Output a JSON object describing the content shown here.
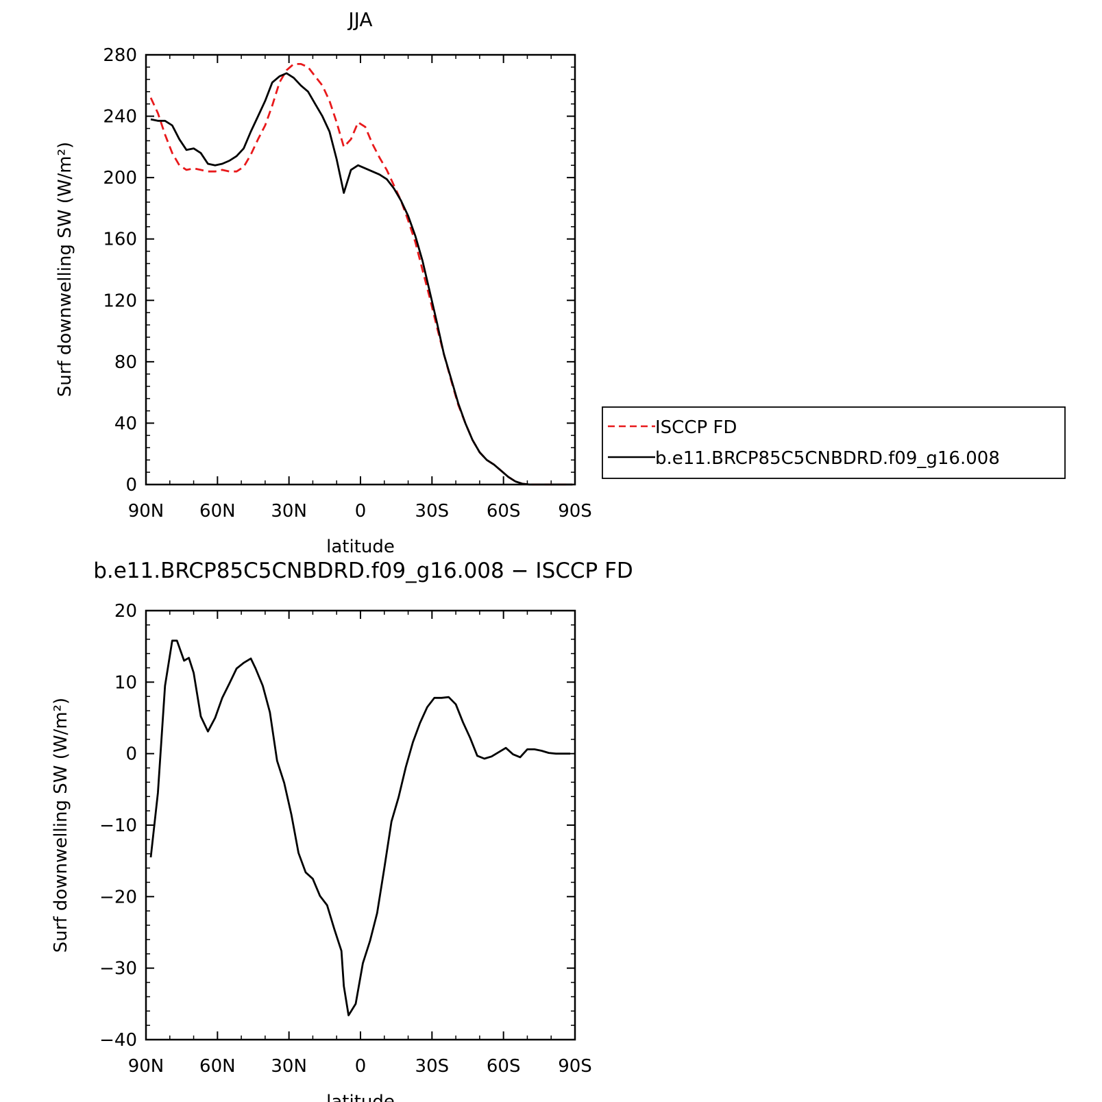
{
  "chart_data": [
    {
      "type": "line",
      "title": "JJA",
      "xlabel": "latitude",
      "ylabel": "Surf downwelling SW (W/m²)",
      "xlim": [
        90,
        -90
      ],
      "ylim": [
        0,
        280
      ],
      "x_ticks": [
        {
          "value": 90,
          "label": "90N"
        },
        {
          "value": 60,
          "label": "60N"
        },
        {
          "value": 30,
          "label": "30N"
        },
        {
          "value": 0,
          "label": "0"
        },
        {
          "value": -30,
          "label": "30S"
        },
        {
          "value": -60,
          "label": "60S"
        },
        {
          "value": -90,
          "label": "90S"
        }
      ],
      "y_ticks": [
        0,
        40,
        80,
        120,
        160,
        200,
        240,
        280
      ],
      "x_minor_step": 10,
      "y_minor_step": 8,
      "legend_position": "right",
      "series": [
        {
          "name": "ISCCP FD",
          "color": "#e8191b",
          "dash": "dashed",
          "x": [
            88,
            85,
            82,
            79,
            76,
            73,
            70,
            67,
            64,
            61,
            58,
            55,
            52,
            49,
            46,
            43,
            40,
            37,
            34,
            31,
            28,
            25,
            22,
            19,
            16,
            13,
            10,
            7,
            4,
            1,
            -2,
            -5,
            -8,
            -11,
            -14,
            -17,
            -20,
            -23,
            -26,
            -29,
            -32,
            -35,
            -38,
            -41,
            -44,
            -47,
            -50,
            -53,
            -56,
            -59,
            -62,
            -65,
            -68,
            -71,
            -74,
            -77,
            -80,
            -83,
            -86,
            -89
          ],
          "y": [
            252,
            242,
            228,
            216,
            208,
            205,
            206,
            205,
            204,
            204,
            205,
            204,
            204,
            207,
            215,
            225,
            234,
            247,
            262,
            270,
            274,
            274,
            272,
            266,
            260,
            250,
            236,
            220,
            225,
            236,
            233,
            222,
            213,
            205,
            195,
            185,
            172,
            158,
            140,
            122,
            103,
            85,
            68,
            52,
            40,
            29,
            21,
            16,
            13,
            9,
            5,
            2,
            0.5,
            0,
            0,
            0,
            0,
            0,
            0,
            0
          ]
        },
        {
          "name": "b.e11.BRCP85C5CNBDRD.f09_g16.008",
          "color": "#000000",
          "dash": "solid",
          "x": [
            88,
            85,
            82,
            79,
            76,
            73,
            70,
            67,
            64,
            61,
            58,
            55,
            52,
            49,
            46,
            43,
            40,
            37,
            34,
            31,
            28,
            25,
            22,
            19,
            16,
            13,
            10,
            7,
            4,
            1,
            -2,
            -5,
            -8,
            -11,
            -14,
            -17,
            -20,
            -23,
            -26,
            -29,
            -32,
            -35,
            -38,
            -41,
            -44,
            -47,
            -50,
            -53,
            -56,
            -59,
            -62,
            -65,
            -68,
            -71,
            -74,
            -77,
            -80,
            -83,
            -86,
            -89
          ],
          "y": [
            238,
            237,
            237,
            234,
            225,
            218,
            219,
            216,
            209,
            208,
            209,
            211,
            214,
            219,
            230,
            240,
            250,
            262,
            266,
            268,
            265,
            260,
            256,
            248,
            240,
            230,
            212,
            190,
            205,
            208,
            206,
            204,
            202,
            199,
            193,
            185,
            175,
            162,
            146,
            126,
            106,
            85,
            69,
            53,
            40,
            29,
            21,
            16,
            13,
            9,
            5,
            2,
            0.5,
            0,
            0,
            0,
            0,
            0,
            0,
            0
          ]
        }
      ]
    },
    {
      "type": "line",
      "title": "b.e11.BRCP85C5CNBDRD.f09_g16.008 − ISCCP FD",
      "xlabel": "latitude",
      "ylabel": "Surf downwelling SW (W/m²)",
      "xlim": [
        90,
        -90
      ],
      "ylim": [
        -40,
        20
      ],
      "x_ticks": [
        {
          "value": 90,
          "label": "90N"
        },
        {
          "value": 60,
          "label": "60N"
        },
        {
          "value": 30,
          "label": "30N"
        },
        {
          "value": 0,
          "label": "0"
        },
        {
          "value": -30,
          "label": "30S"
        },
        {
          "value": -60,
          "label": "60S"
        },
        {
          "value": -90,
          "label": "90S"
        }
      ],
      "y_ticks": [
        {
          "value": 20,
          "label": "20"
        },
        {
          "value": 10,
          "label": "10"
        },
        {
          "value": 0,
          "label": "0"
        },
        {
          "value": -10,
          "label": "−10"
        },
        {
          "value": -20,
          "label": "−20"
        },
        {
          "value": -30,
          "label": "−30"
        },
        {
          "value": -40,
          "label": "−40"
        }
      ],
      "x_minor_step": 10,
      "y_minor_step": 2,
      "series": [
        {
          "color": "#000000",
          "dash": "solid",
          "x": [
            88,
            85,
            82,
            79,
            77,
            74,
            72,
            70,
            67,
            64,
            61,
            58,
            55,
            52,
            49,
            46,
            44,
            41,
            38,
            35,
            32,
            29,
            26,
            23,
            20,
            17,
            14,
            11,
            8,
            7,
            5,
            2,
            -1,
            -4,
            -7,
            -10,
            -13,
            -16,
            -19,
            -22,
            -25,
            -28,
            -31,
            -34,
            -37,
            -40,
            -43,
            -46,
            -49,
            -52,
            -55,
            -58,
            -61,
            -64,
            -67,
            -70,
            -73,
            -76,
            -79,
            -82,
            -85,
            -88
          ],
          "y": [
            -14.5,
            -5.5,
            9.5,
            15.8,
            15.8,
            13,
            13.4,
            11.3,
            5.2,
            3.1,
            5,
            7.8,
            9.8,
            11.9,
            12.7,
            13.3,
            11.9,
            9.5,
            5.8,
            -1,
            -4.1,
            -8.5,
            -13.9,
            -16.6,
            -17.5,
            -19.9,
            -21.2,
            -24.5,
            -27.6,
            -32.5,
            -36.6,
            -35,
            -29.3,
            -26.2,
            -22.3,
            -16,
            -9.5,
            -6.1,
            -1.9,
            1.6,
            4.3,
            6.5,
            7.8,
            7.8,
            7.9,
            6.9,
            4.4,
            2.2,
            -0.3,
            -0.7,
            -0.4,
            0.2,
            0.8,
            -0.1,
            -0.5,
            0.6,
            0.6,
            0.4,
            0.1,
            0,
            0,
            0
          ]
        }
      ]
    }
  ]
}
